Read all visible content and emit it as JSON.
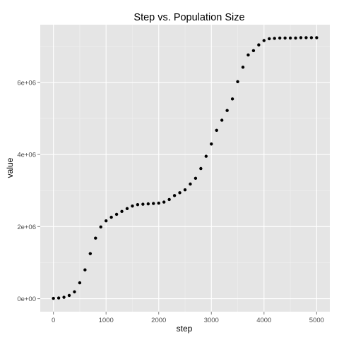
{
  "chart_data": {
    "type": "scatter",
    "title": "Step vs. Population Size",
    "xlabel": "step",
    "ylabel": "value",
    "xlim": [
      -250,
      5250
    ],
    "ylim": [
      -360000,
      7600000
    ],
    "x_ticks": [
      0,
      1000,
      2000,
      3000,
      4000,
      5000
    ],
    "x_tick_labels": [
      "0",
      "1000",
      "2000",
      "3000",
      "4000",
      "5000"
    ],
    "y_ticks": [
      0,
      2000000,
      4000000,
      6000000
    ],
    "y_tick_labels": [
      "0e+00",
      "2e+06",
      "4e+06",
      "6e+06"
    ],
    "grid": true,
    "legend": "none",
    "colors": {
      "panel_background": "#e5e5e5",
      "grid_major": "#ffffff",
      "grid_minor": "#f0f0f0",
      "point": "#000000",
      "tick_text": "#4d4d4d",
      "title_text": "#000000"
    },
    "series": [
      {
        "x": [
          0,
          100,
          200,
          300,
          400,
          500,
          600,
          700,
          800,
          900,
          1000,
          1100,
          1200,
          1300,
          1400,
          1500,
          1600,
          1700,
          1800,
          1900,
          2000,
          2100,
          2200,
          2300,
          2400,
          2500,
          2600,
          2700,
          2800,
          2900,
          3000,
          3100,
          3200,
          3300,
          3400,
          3500,
          3600,
          3700,
          3800,
          3900,
          4000,
          4100,
          4200,
          4300,
          4400,
          4500,
          4600,
          4700,
          4800,
          4900,
          5000
        ],
        "values": [
          10000,
          20000,
          40000,
          90000,
          190000,
          440000,
          800000,
          1250000,
          1680000,
          1990000,
          2160000,
          2260000,
          2340000,
          2420000,
          2500000,
          2570000,
          2610000,
          2620000,
          2630000,
          2640000,
          2650000,
          2680000,
          2750000,
          2860000,
          2940000,
          3020000,
          3180000,
          3340000,
          3610000,
          3950000,
          4290000,
          4670000,
          4950000,
          5220000,
          5540000,
          6020000,
          6420000,
          6760000,
          6880000,
          7040000,
          7160000,
          7210000,
          7220000,
          7230000,
          7230000,
          7230000,
          7230000,
          7240000,
          7240000,
          7240000,
          7240000
        ]
      }
    ]
  }
}
